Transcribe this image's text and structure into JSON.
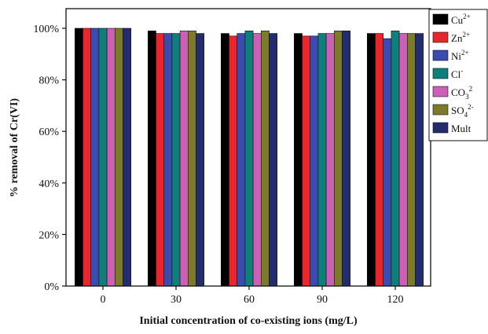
{
  "chart_data": {
    "type": "bar",
    "xlabel": "Initial concentration of co-existing ions (mg/L)",
    "ylabel": "% removal of Cr(VI)",
    "categories": [
      "0",
      "30",
      "60",
      "90",
      "120"
    ],
    "ylim": [
      0,
      100
    ],
    "y_ticks": [
      "0%",
      "20%",
      "40%",
      "60%",
      "80%",
      "100%"
    ],
    "y_tick_values": [
      0,
      20,
      40,
      60,
      80,
      100
    ],
    "legend_position": "top-right, partially outside plot",
    "grid": false,
    "series": [
      {
        "name": "Cu",
        "sup": "2+",
        "sub": "",
        "color": "#000000",
        "values": [
          100,
          99,
          98,
          98,
          98
        ]
      },
      {
        "name": "Zn",
        "sup": "2+",
        "sub": "",
        "color": "#e8262b",
        "values": [
          100,
          98,
          97,
          97,
          98
        ]
      },
      {
        "name": "Ni",
        "sup": "2+",
        "sub": "",
        "color": "#3b4bb0",
        "values": [
          100,
          98,
          98,
          97,
          96
        ]
      },
      {
        "name": "Cl",
        "sup": "-",
        "sub": "",
        "color": "#0e7f7a",
        "values": [
          100,
          98,
          99,
          98,
          99
        ]
      },
      {
        "name": "CO",
        "sup": "2",
        "sub": "3",
        "color": "#cc5fb6",
        "values": [
          100,
          99,
          98,
          98,
          98
        ]
      },
      {
        "name": "SO",
        "sup": "2-",
        "sub": "4",
        "color": "#7b7b2a",
        "values": [
          100,
          99,
          99,
          99,
          98
        ]
      },
      {
        "name": "Mult",
        "sup": "",
        "sub": "",
        "color": "#232c6e",
        "values": [
          100,
          98,
          98,
          99,
          98
        ]
      }
    ]
  }
}
